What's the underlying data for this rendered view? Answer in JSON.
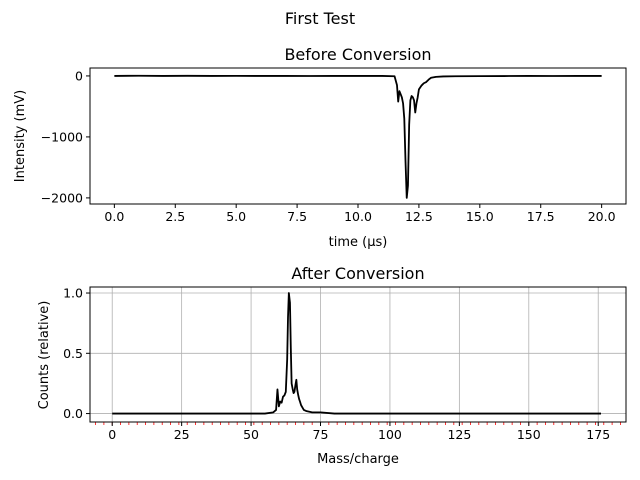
{
  "figure": {
    "title": "First Test"
  },
  "chart_data": [
    {
      "type": "line",
      "title": "Before Conversion",
      "xlabel": "time (μs)",
      "ylabel": "Intensity (mV)",
      "xlim": [
        -1.0,
        21.0
      ],
      "ylim": [
        -2100,
        130
      ],
      "xticks": [
        0.0,
        2.5,
        5.0,
        7.5,
        10.0,
        12.5,
        15.0,
        17.5,
        20.0
      ],
      "xtick_labels": [
        "0.0",
        "2.5",
        "5.0",
        "7.5",
        "10.0",
        "12.5",
        "15.0",
        "17.5",
        "20.0"
      ],
      "yticks": [
        0,
        -1000,
        -2000
      ],
      "ytick_labels": [
        "0",
        "−1000",
        "−2000"
      ],
      "grid": false,
      "line_color": "#000000",
      "series": [
        {
          "x": [
            0.0,
            1.0,
            2.0,
            3.0,
            4.0,
            5.0,
            6.0,
            7.0,
            8.0,
            9.0,
            10.0,
            11.0,
            11.5,
            11.6,
            11.65,
            11.7,
            11.75,
            11.8,
            11.85,
            11.9,
            11.95,
            12.0,
            12.05,
            12.1,
            12.15,
            12.2,
            12.25,
            12.3,
            12.35,
            12.4,
            12.45,
            12.5,
            12.6,
            12.7,
            12.8,
            12.9,
            13.0,
            13.2,
            13.5,
            14.0,
            15.0,
            16.0,
            17.0,
            18.0,
            19.0,
            20.0
          ],
          "y": [
            0,
            3,
            0,
            2,
            0,
            1,
            0,
            0,
            -1,
            0,
            0,
            0,
            -5,
            -150,
            -420,
            -250,
            -300,
            -350,
            -450,
            -700,
            -1400,
            -2000,
            -1800,
            -800,
            -400,
            -330,
            -350,
            -400,
            -600,
            -450,
            -350,
            -220,
            -160,
            -120,
            -100,
            -60,
            -30,
            -15,
            -8,
            -5,
            -3,
            -2,
            0,
            -1,
            0,
            0
          ]
        }
      ]
    },
    {
      "type": "line",
      "title": "After Conversion",
      "xlabel": "Mass/charge",
      "ylabel": "Counts (relative)",
      "xlim": [
        -8,
        185
      ],
      "ylim": [
        -0.07,
        1.05
      ],
      "xticks": [
        0,
        25,
        50,
        75,
        100,
        125,
        150,
        175
      ],
      "xtick_labels": [
        "0",
        "25",
        "50",
        "75",
        "100",
        "125",
        "150",
        "175"
      ],
      "yticks": [
        0.0,
        0.5,
        1.0
      ],
      "ytick_labels": [
        "0.0",
        "0.5",
        "1.0"
      ],
      "minor_xtick_step": 3,
      "minor_tick_color": "#ff0000",
      "grid": true,
      "line_color": "#000000",
      "series": [
        {
          "x": [
            0,
            10,
            20,
            30,
            40,
            50,
            55,
            58,
            59,
            59.5,
            60,
            60.5,
            61,
            61.5,
            62,
            62.5,
            63,
            63.3,
            63.6,
            64,
            64.3,
            64.6,
            65,
            65.3,
            65.6,
            66,
            66.3,
            66.6,
            67,
            67.3,
            67.6,
            68,
            68.5,
            69,
            70,
            72,
            75,
            80,
            90,
            100,
            110,
            120,
            130,
            140,
            150,
            160,
            170,
            176
          ],
          "y": [
            0,
            0,
            0,
            0,
            0,
            0,
            0,
            0.01,
            0.03,
            0.2,
            0.06,
            0.1,
            0.09,
            0.14,
            0.15,
            0.18,
            0.45,
            0.8,
            1.0,
            0.92,
            0.55,
            0.25,
            0.2,
            0.17,
            0.18,
            0.24,
            0.28,
            0.2,
            0.15,
            0.12,
            0.1,
            0.07,
            0.05,
            0.03,
            0.02,
            0.01,
            0.01,
            0,
            0,
            0,
            0,
            0,
            0,
            0,
            0,
            0,
            0,
            0
          ]
        }
      ]
    }
  ]
}
